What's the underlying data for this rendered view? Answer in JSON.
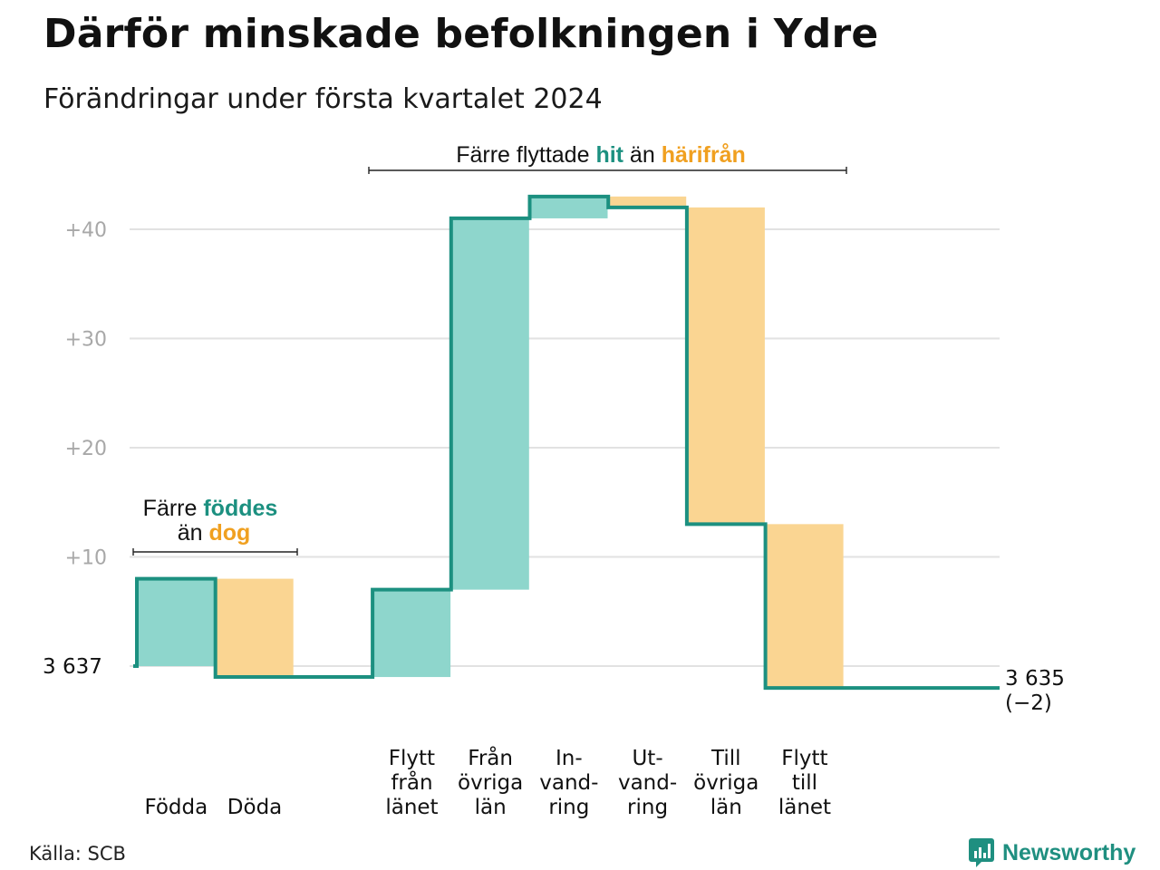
{
  "header": {
    "title": "Därför minskade befolkningen i Ydre",
    "subtitle": "Förändringar under första kvartalet 2024"
  },
  "footer": {
    "source": "Källa: SCB",
    "brand": "Newsworthy"
  },
  "colors": {
    "increase": "#8ed6cc",
    "decrease": "#fad592",
    "line": "#1c9080",
    "teal_text": "#1c9080",
    "orange_text": "#f0a020",
    "grid": "#e2e2e2",
    "tick": "#a8a8a8"
  },
  "annotations": {
    "births_deaths": {
      "line1_pre": "Färre ",
      "line1_hl": "föddes",
      "line2_pre": "än ",
      "line2_hl": "dog"
    },
    "migration": {
      "pre": "Färre flyttade ",
      "hl1": "hit",
      "mid": " än ",
      "hl2": "härifrån"
    }
  },
  "chart_data": {
    "type": "waterfall",
    "title": "Därför minskade befolkningen i Ydre",
    "subtitle": "Förändringar under första kvartalet 2024",
    "start": {
      "label": "3  637",
      "value": 3637
    },
    "end": {
      "label": "3 635",
      "change_label": "(−2)",
      "value": 3635
    },
    "y_axis": {
      "ticks": [
        {
          "label": "+10",
          "value": 10
        },
        {
          "label": "+20",
          "value": 20
        },
        {
          "label": "+30",
          "value": 30
        },
        {
          "label": "+40",
          "value": 40
        }
      ],
      "ylim": [
        -2,
        43
      ],
      "grid": true
    },
    "steps": [
      {
        "group": "births_deaths",
        "label": [
          "Födda"
        ],
        "value": 8,
        "kind": "increase"
      },
      {
        "group": "births_deaths",
        "label": [
          "Döda"
        ],
        "value": -9,
        "kind": "decrease"
      },
      {
        "group": "gap",
        "label": [],
        "value": 0,
        "kind": "none"
      },
      {
        "group": "migration",
        "label": [
          "Flytt",
          "från",
          "länet"
        ],
        "value": 8,
        "kind": "increase"
      },
      {
        "group": "migration",
        "label": [
          "Från",
          "övriga",
          "län"
        ],
        "value": 34,
        "kind": "increase"
      },
      {
        "group": "migration",
        "label": [
          "In-",
          "vand-",
          "ring"
        ],
        "value": 2,
        "kind": "increase"
      },
      {
        "group": "migration",
        "label": [
          "Ut-",
          "vand-",
          "ring"
        ],
        "value": -1,
        "kind": "decrease"
      },
      {
        "group": "migration",
        "label": [
          "Till",
          "övriga",
          "län"
        ],
        "value": -29,
        "kind": "decrease"
      },
      {
        "group": "migration",
        "label": [
          "Flytt",
          "till",
          "länet"
        ],
        "value": -15,
        "kind": "decrease"
      },
      {
        "group": "end",
        "label": [],
        "value": 0,
        "kind": "none"
      }
    ]
  }
}
